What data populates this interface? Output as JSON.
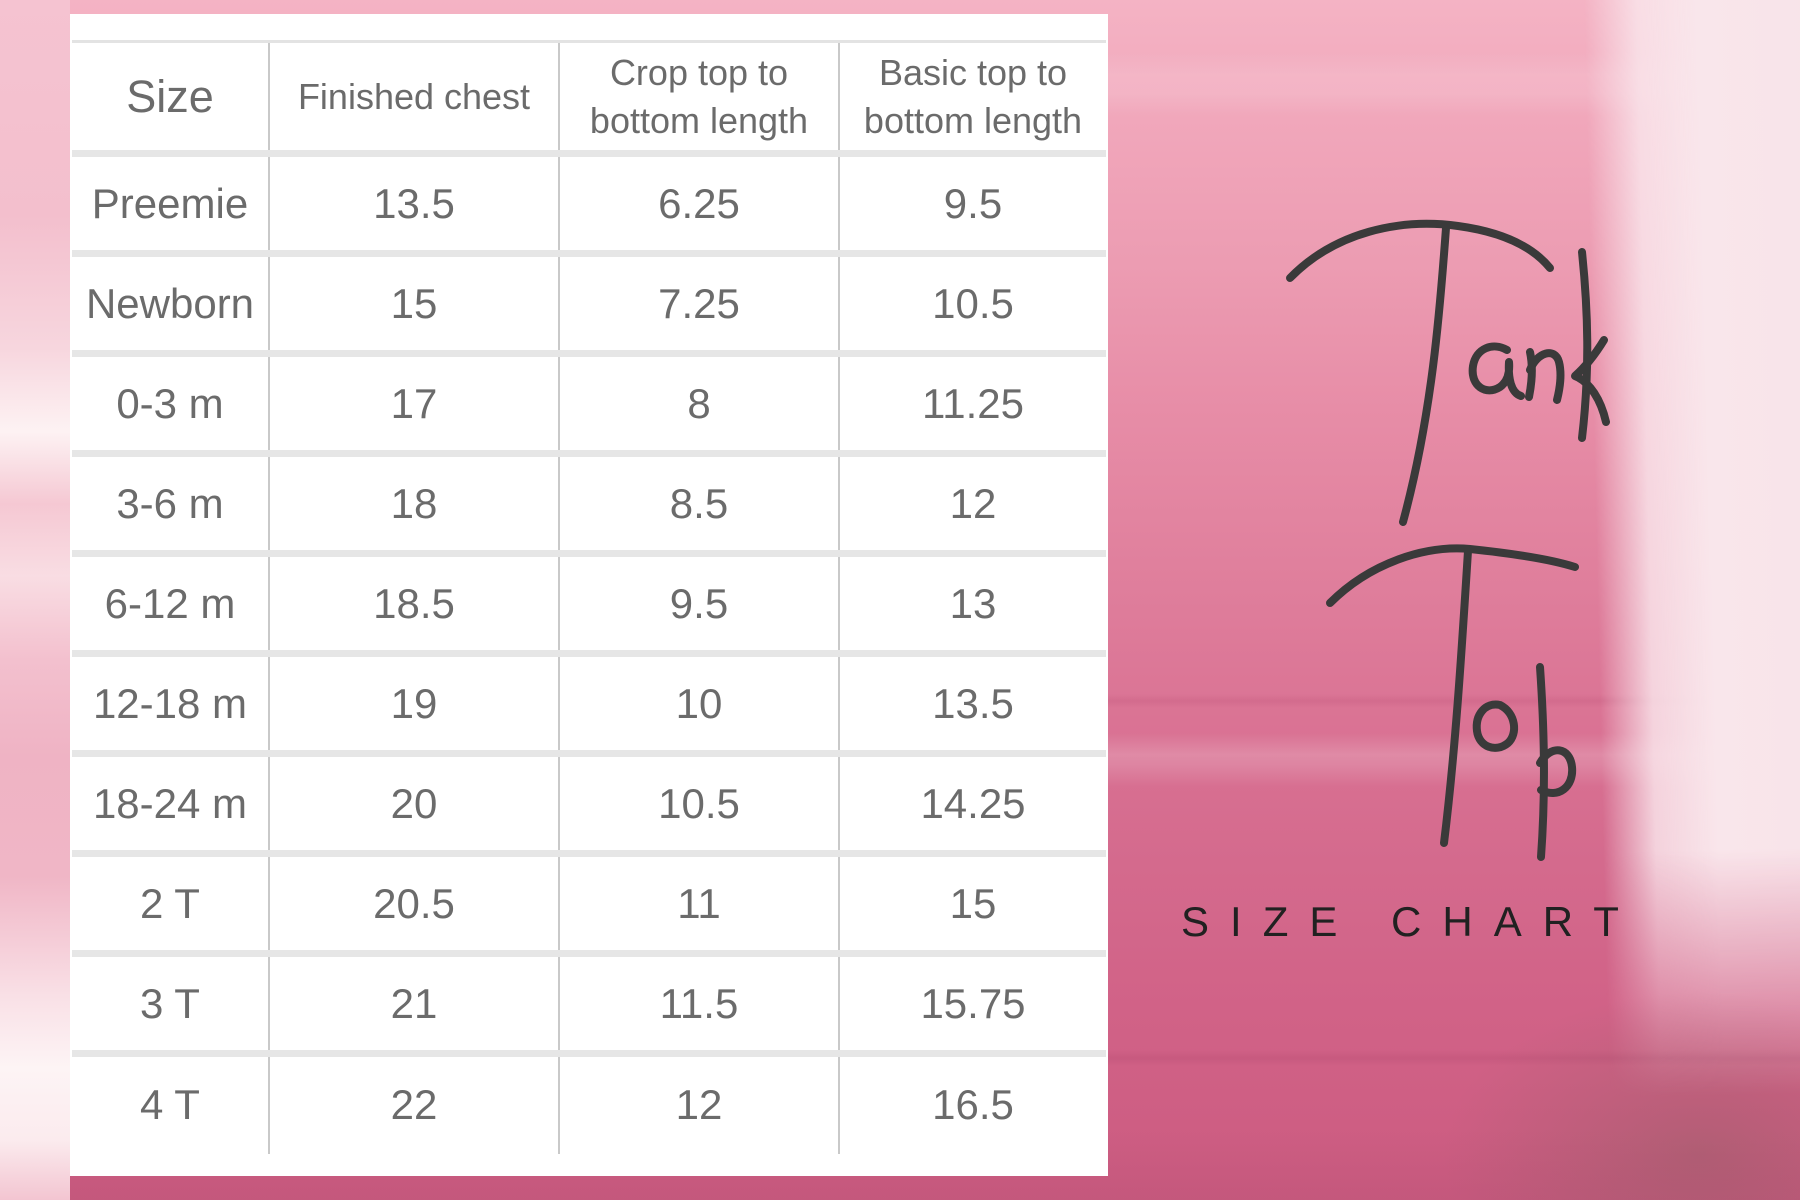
{
  "title": {
    "word1": "Tank",
    "word2": "Top",
    "subtitle": "SIZE CHART"
  },
  "table": {
    "headers": [
      "Size",
      "Finished chest",
      "Crop top to bottom length",
      "Basic top to bottom length"
    ],
    "rows": [
      [
        "Preemie",
        "13.5",
        "6.25",
        "9.5"
      ],
      [
        "Newborn",
        "15",
        "7.25",
        "10.5"
      ],
      [
        "0-3 m",
        "17",
        "8",
        "11.25"
      ],
      [
        "3-6 m",
        "18",
        "8.5",
        "12"
      ],
      [
        "6-12 m",
        "18.5",
        "9.5",
        "13"
      ],
      [
        "12-18 m",
        "19",
        "10",
        "13.5"
      ],
      [
        "18-24 m",
        "20",
        "10.5",
        "14.25"
      ],
      [
        "2 T",
        "20.5",
        "11",
        "15"
      ],
      [
        "3 T",
        "21",
        "11.5",
        "15.75"
      ],
      [
        "4 T",
        "22",
        "12",
        "16.5"
      ]
    ]
  },
  "colors": {
    "background_pink_top": "#f1a7bb",
    "background_pink_bottom": "#cb5c81",
    "background_light_strip": "#f9e6eb",
    "panel_background": "#ffffff",
    "table_text": "#6b6b6b",
    "grid_line_vertical": "#c9c9c9",
    "grid_line_horizontal": "#e6e6e6",
    "script_text": "#3a3a3a",
    "subtitle_text": "#212121"
  },
  "chart_data": {
    "type": "table",
    "title": "Tank Top Size Chart",
    "columns": [
      "Size",
      "Finished chest",
      "Crop top to bottom length",
      "Basic top to bottom length"
    ],
    "rows": [
      {
        "size": "Preemie",
        "finished_chest": 13.5,
        "crop_top_to_bottom_length": 6.25,
        "basic_top_to_bottom_length": 9.5
      },
      {
        "size": "Newborn",
        "finished_chest": 15,
        "crop_top_to_bottom_length": 7.25,
        "basic_top_to_bottom_length": 10.5
      },
      {
        "size": "0-3 m",
        "finished_chest": 17,
        "crop_top_to_bottom_length": 8,
        "basic_top_to_bottom_length": 11.25
      },
      {
        "size": "3-6 m",
        "finished_chest": 18,
        "crop_top_to_bottom_length": 8.5,
        "basic_top_to_bottom_length": 12
      },
      {
        "size": "6-12 m",
        "finished_chest": 18.5,
        "crop_top_to_bottom_length": 9.5,
        "basic_top_to_bottom_length": 13
      },
      {
        "size": "12-18 m",
        "finished_chest": 19,
        "crop_top_to_bottom_length": 10,
        "basic_top_to_bottom_length": 13.5
      },
      {
        "size": "18-24 m",
        "finished_chest": 20,
        "crop_top_to_bottom_length": 10.5,
        "basic_top_to_bottom_length": 14.25
      },
      {
        "size": "2 T",
        "finished_chest": 20.5,
        "crop_top_to_bottom_length": 11,
        "basic_top_to_bottom_length": 15
      },
      {
        "size": "3 T",
        "finished_chest": 21,
        "crop_top_to_bottom_length": 11.5,
        "basic_top_to_bottom_length": 15.75
      },
      {
        "size": "4 T",
        "finished_chest": 22,
        "crop_top_to_bottom_length": 12,
        "basic_top_to_bottom_length": 16.5
      }
    ]
  }
}
